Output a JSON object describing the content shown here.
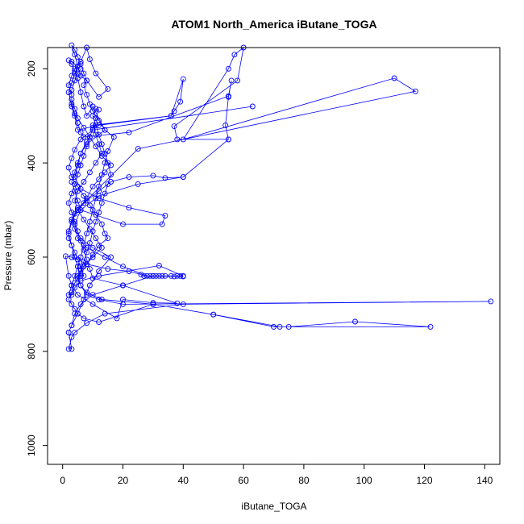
{
  "chart_data": {
    "type": "line",
    "title": "ATOM1 North_America iButane_TOGA",
    "xlabel": "iButane_TOGA",
    "ylabel": "Pressure (mbar)",
    "xlim": [
      -5,
      145
    ],
    "ylim": [
      1040,
      155
    ],
    "y_reversed": true,
    "grid": false,
    "legend": "none",
    "x_ticks": [
      0,
      20,
      40,
      60,
      80,
      100,
      120,
      140
    ],
    "y_ticks": [
      200,
      400,
      600,
      800,
      1000
    ],
    "colors": {
      "series": "#0000ff",
      "frame": "#000000",
      "background": "#ffffff"
    },
    "series": [
      {
        "marker": "open-circle",
        "points": [
          [
            2,
            760
          ],
          [
            3,
            745
          ],
          [
            5,
            720
          ],
          [
            7,
            690
          ],
          [
            9,
            660
          ],
          [
            12,
            630
          ],
          [
            16,
            600
          ],
          [
            10,
            580
          ],
          [
            6,
            560
          ],
          [
            4,
            540
          ],
          [
            3,
            520
          ],
          [
            5,
            500
          ],
          [
            8,
            480
          ],
          [
            12,
            460
          ],
          [
            16,
            440
          ],
          [
            22,
            430
          ],
          [
            30,
            427
          ],
          [
            34,
            432
          ],
          [
            40,
            430
          ],
          [
            55,
            350
          ],
          [
            40,
            430
          ],
          [
            25,
            445
          ],
          [
            12,
            470
          ],
          [
            6,
            500
          ],
          [
            4,
            530
          ],
          [
            5,
            560
          ],
          [
            8,
            580
          ],
          [
            14,
            600
          ],
          [
            20,
            620
          ],
          [
            28,
            640
          ],
          [
            33,
            640
          ],
          [
            40,
            641
          ],
          [
            30,
            640
          ],
          [
            20,
            660
          ],
          [
            10,
            680
          ],
          [
            6,
            700
          ],
          [
            4,
            720
          ],
          [
            3,
            745
          ],
          [
            2,
            760
          ],
          [
            3,
            795
          ],
          [
            2,
            795
          ],
          [
            3,
            770
          ],
          [
            4,
            760
          ],
          [
            8,
            740
          ],
          [
            14,
            720
          ],
          [
            40,
            700
          ],
          [
            142,
            694
          ],
          [
            20,
            700
          ],
          [
            12,
            690
          ],
          [
            8,
            680
          ],
          [
            6,
            660
          ],
          [
            5,
            640
          ],
          [
            7,
            620
          ],
          [
            10,
            600
          ],
          [
            13,
            580
          ],
          [
            11,
            560
          ],
          [
            9,
            540
          ],
          [
            7,
            520
          ],
          [
            5,
            500
          ],
          [
            4,
            480
          ],
          [
            5,
            460
          ],
          [
            7,
            440
          ],
          [
            9,
            420
          ],
          [
            11,
            400
          ],
          [
            13,
            380
          ],
          [
            12,
            360
          ],
          [
            11,
            340
          ],
          [
            10,
            320
          ],
          [
            36,
            300
          ],
          [
            37,
            290
          ],
          [
            39,
            270
          ],
          [
            40,
            222
          ],
          [
            36,
            300
          ],
          [
            12,
            320
          ],
          [
            5,
            330
          ],
          [
            4,
            300
          ],
          [
            3,
            280
          ],
          [
            2,
            250
          ],
          [
            3,
            230
          ],
          [
            4,
            210
          ],
          [
            5,
            195
          ],
          [
            3,
            185
          ],
          [
            2,
            182
          ],
          [
            3,
            190
          ],
          [
            4,
            205
          ],
          [
            5,
            220
          ],
          [
            6,
            250
          ],
          [
            7,
            280
          ],
          [
            8,
            300
          ],
          [
            10,
            280
          ],
          [
            14,
            330
          ],
          [
            8,
            360
          ],
          [
            6,
            380
          ],
          [
            5,
            400
          ],
          [
            4,
            420
          ],
          [
            3,
            440
          ],
          [
            4,
            460
          ],
          [
            5,
            480
          ],
          [
            6,
            500
          ],
          [
            20,
            530
          ],
          [
            33,
            530
          ],
          [
            34,
            512
          ],
          [
            22,
            495
          ],
          [
            12,
            475
          ],
          [
            6,
            455
          ],
          [
            4,
            430
          ],
          [
            5,
            405
          ],
          [
            6,
            380
          ],
          [
            8,
            355
          ],
          [
            10,
            330
          ],
          [
            63,
            280
          ],
          [
            10,
            330
          ],
          [
            6,
            350
          ],
          [
            4,
            372
          ],
          [
            3,
            390
          ],
          [
            2,
            410
          ],
          [
            3,
            430
          ],
          [
            5,
            450
          ],
          [
            7,
            470
          ],
          [
            9,
            490
          ],
          [
            11,
            510
          ],
          [
            13,
            530
          ],
          [
            14,
            550
          ],
          [
            15,
            560
          ],
          [
            12,
            575
          ],
          [
            10,
            595
          ],
          [
            8,
            615
          ],
          [
            6,
            635
          ],
          [
            4,
            655
          ],
          [
            3,
            675
          ],
          [
            2,
            690
          ],
          [
            3,
            700
          ],
          [
            4,
            710
          ],
          [
            5,
            720
          ],
          [
            7,
            730
          ],
          [
            12,
            738
          ],
          [
            30,
            700
          ],
          [
            50,
            722
          ],
          [
            72,
            748
          ],
          [
            75,
            748
          ],
          [
            97,
            737
          ],
          [
            122,
            748
          ],
          [
            70,
            748
          ],
          [
            50,
            722
          ],
          [
            30,
            700
          ],
          [
            13,
            690
          ],
          [
            8,
            675
          ],
          [
            6,
            660
          ],
          [
            5,
            645
          ],
          [
            6,
            628
          ],
          [
            7,
            610
          ],
          [
            8,
            590
          ],
          [
            9,
            570
          ],
          [
            10,
            545
          ],
          [
            11,
            525
          ],
          [
            12,
            505
          ],
          [
            13,
            485
          ],
          [
            14,
            465
          ],
          [
            15,
            445
          ],
          [
            16,
            425
          ],
          [
            15,
            400
          ],
          [
            14,
            380
          ],
          [
            13,
            360
          ],
          [
            12,
            340
          ],
          [
            11,
            320
          ],
          [
            10,
            300
          ],
          [
            11,
            285
          ],
          [
            12,
            287
          ],
          [
            11,
            305
          ],
          [
            10,
            325
          ],
          [
            9,
            345
          ],
          [
            8,
            365
          ],
          [
            7,
            385
          ],
          [
            6,
            405
          ],
          [
            5,
            425
          ],
          [
            4,
            445
          ],
          [
            3,
            465
          ],
          [
            2,
            485
          ],
          [
            3,
            505
          ],
          [
            4,
            525
          ],
          [
            5,
            545
          ],
          [
            6,
            565
          ],
          [
            7,
            585
          ],
          [
            8,
            605
          ],
          [
            9,
            625
          ],
          [
            10,
            645
          ],
          [
            20,
            660
          ],
          [
            38,
            698
          ],
          [
            30,
            697
          ],
          [
            20,
            690
          ],
          [
            18,
            730
          ],
          [
            10,
            700
          ],
          [
            5,
            680
          ],
          [
            3,
            660
          ],
          [
            2,
            640
          ],
          [
            1,
            598
          ],
          [
            3,
            600
          ],
          [
            5,
            605
          ],
          [
            8,
            615
          ],
          [
            15,
            625
          ],
          [
            22,
            630
          ],
          [
            26,
            637
          ],
          [
            27,
            640
          ],
          [
            29,
            640
          ],
          [
            30,
            640
          ],
          [
            31,
            640
          ],
          [
            32,
            640
          ],
          [
            34,
            640
          ],
          [
            36,
            640
          ],
          [
            37,
            641
          ],
          [
            38,
            640
          ],
          [
            39,
            640
          ],
          [
            40,
            640
          ],
          [
            32,
            618
          ],
          [
            12,
            640
          ],
          [
            6,
            650
          ],
          [
            4,
            665
          ],
          [
            3,
            680
          ],
          [
            2,
            680
          ],
          [
            3,
            660
          ],
          [
            4,
            640
          ],
          [
            5,
            620
          ],
          [
            6,
            600
          ],
          [
            7,
            575
          ],
          [
            8,
            550
          ],
          [
            9,
            525
          ],
          [
            10,
            500
          ],
          [
            11,
            475
          ],
          [
            12,
            450
          ],
          [
            13,
            425
          ],
          [
            14,
            400
          ],
          [
            15,
            375
          ],
          [
            17,
            345
          ],
          [
            14,
            330
          ],
          [
            12,
            310
          ],
          [
            10,
            290
          ],
          [
            9,
            275
          ],
          [
            8,
            255
          ],
          [
            7,
            235
          ],
          [
            8,
            225
          ],
          [
            7,
            210
          ],
          [
            6,
            190
          ],
          [
            5,
            175
          ],
          [
            4,
            160
          ],
          [
            3,
            150
          ],
          [
            4,
            170
          ],
          [
            5,
            195
          ],
          [
            6,
            215
          ],
          [
            8,
            225
          ],
          [
            12,
            260
          ],
          [
            15,
            243
          ],
          [
            11,
            210
          ],
          [
            9,
            180
          ],
          [
            8,
            155
          ],
          [
            6,
            185
          ],
          [
            4,
            200
          ],
          [
            3,
            215
          ],
          [
            2,
            235
          ],
          [
            3,
            255
          ],
          [
            3,
            275
          ],
          [
            4,
            295
          ],
          [
            5,
            315
          ],
          [
            6,
            335
          ],
          [
            7,
            345
          ],
          [
            22,
            335
          ],
          [
            55,
            258
          ],
          [
            56,
            225
          ],
          [
            55,
            260
          ],
          [
            54,
            320
          ],
          [
            55,
            350
          ],
          [
            38,
            350
          ],
          [
            37,
            322
          ],
          [
            58,
            225
          ],
          [
            60,
            155
          ],
          [
            57,
            170
          ],
          [
            55,
            200
          ],
          [
            40,
            350
          ],
          [
            110,
            220
          ],
          [
            117,
            248
          ],
          [
            25,
            370
          ],
          [
            7,
            485
          ],
          [
            5,
            495
          ],
          [
            4,
            508
          ],
          [
            3,
            520
          ],
          [
            2,
            545
          ],
          [
            2,
            560
          ],
          [
            3,
            575
          ],
          [
            4,
            590
          ],
          [
            5,
            605
          ],
          [
            6,
            620
          ],
          [
            7,
            640
          ],
          [
            6,
            640
          ],
          [
            5,
            620
          ],
          [
            4,
            600
          ],
          [
            3,
            575
          ],
          [
            2,
            550
          ],
          [
            3,
            525
          ],
          [
            5,
            500
          ],
          [
            8,
            475
          ],
          [
            10,
            450
          ],
          [
            12,
            435
          ],
          [
            14,
            420
          ],
          [
            16,
            405
          ],
          [
            13,
            385
          ],
          [
            11,
            365
          ],
          [
            9,
            345
          ],
          [
            7,
            325
          ],
          [
            5,
            305
          ],
          [
            4,
            285
          ],
          [
            3,
            265
          ],
          [
            3,
            245
          ],
          [
            4,
            225
          ],
          [
            5,
            210
          ],
          [
            6,
            200
          ]
        ]
      }
    ]
  }
}
